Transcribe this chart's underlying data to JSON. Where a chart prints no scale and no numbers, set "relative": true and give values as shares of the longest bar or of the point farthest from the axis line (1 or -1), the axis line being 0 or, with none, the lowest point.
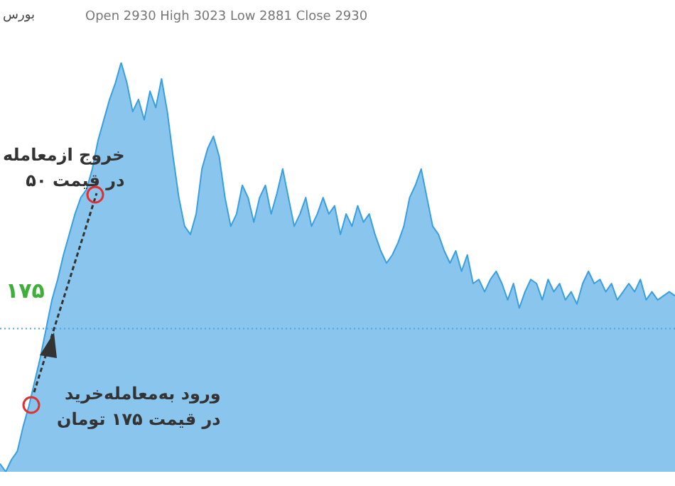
{
  "chart_data": {
    "type": "area",
    "relative": true,
    "categories": [
      null,
      null,
      null,
      null,
      null,
      null,
      null,
      null,
      null,
      null,
      null,
      null,
      null,
      null,
      null,
      null,
      null,
      null,
      null,
      null,
      null,
      null,
      null,
      null,
      null,
      null,
      null,
      null,
      null,
      null,
      null,
      null,
      null,
      null,
      null,
      null,
      null,
      null,
      null,
      null,
      null,
      null,
      null,
      null,
      null,
      null,
      null,
      null,
      null,
      null,
      null,
      null,
      null,
      null,
      null,
      null,
      null,
      null,
      null,
      null,
      null,
      null,
      null,
      null,
      null,
      null,
      null,
      null,
      null,
      null,
      null,
      null,
      null,
      null,
      null,
      null,
      null,
      null,
      null,
      null,
      null,
      null,
      null,
      null,
      null,
      null,
      null,
      null,
      null,
      null,
      null,
      null,
      null,
      null,
      null,
      null,
      null,
      null,
      null,
      null,
      null,
      null,
      null,
      null,
      null,
      null,
      null,
      null,
      null,
      null,
      null,
      null,
      null,
      null,
      null,
      null,
      null,
      null
    ],
    "series": [
      {
        "color": "#3a9fe0",
        "values": [
          0.02,
          0,
          0.03,
          0.05,
          0.11,
          0.16,
          0.22,
          0.28,
          0.35,
          0.42,
          0.47,
          0.53,
          0.58,
          0.63,
          0.67,
          0.69,
          0.74,
          0.81,
          0.86,
          0.91,
          0.95,
          1,
          0.95,
          0.88,
          0.91,
          0.86,
          0.93,
          0.89,
          0.96,
          0.88,
          0.77,
          0.67,
          0.6,
          0.58,
          0.63,
          0.74,
          0.79,
          0.82,
          0.77,
          0.67,
          0.6,
          0.63,
          0.7,
          0.67,
          0.61,
          0.67,
          0.7,
          0.63,
          0.68,
          0.74,
          0.67,
          0.6,
          0.63,
          0.67,
          0.6,
          0.63,
          0.67,
          0.63,
          0.65,
          0.58,
          0.63,
          0.6,
          0.65,
          0.61,
          0.63,
          0.58,
          0.54,
          0.51,
          0.53,
          0.56,
          0.6,
          0.67,
          0.7,
          0.74,
          0.67,
          0.6,
          0.58,
          0.54,
          0.51,
          0.54,
          0.49,
          0.53,
          0.46,
          0.47,
          0.44,
          0.47,
          0.49,
          0.46,
          0.42,
          0.46,
          0.4,
          0.44,
          0.47,
          0.46,
          0.42,
          0.47,
          0.44,
          0.46,
          0.42,
          0.44,
          0.41,
          0.46,
          0.49,
          0.46,
          0.47,
          0.44,
          0.46,
          0.42,
          0.44,
          0.46,
          0.44,
          0.47,
          0.42,
          0.44,
          0.42,
          0.43,
          0.44,
          0.43
        ]
      }
    ],
    "ref_lines": [
      {
        "axis": "y",
        "value": 0.35,
        "label": "۱۷۵",
        "color": "#4fa3e0",
        "line_style": "dotted"
      }
    ],
    "annotations": [
      "بورس",
      "Open 2930 High 3023 Low 2881 Close 2930",
      "خروج ازمعامله\nدر قیمت ۵۰",
      "ورود به‌معامله‌خرید\nدر قیمت ۱۷۵ تومان"
    ]
  }
}
